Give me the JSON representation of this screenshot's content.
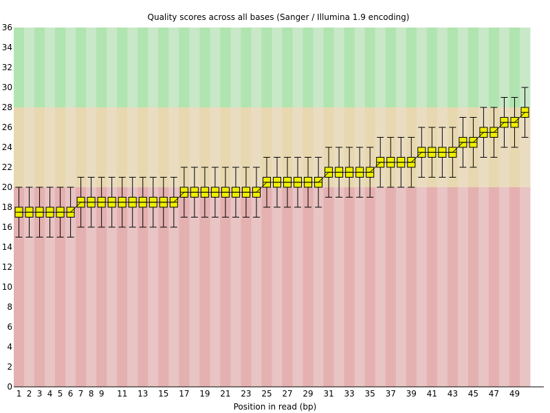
{
  "chart_data": {
    "type": "box",
    "title": "Quality scores across all bases (Sanger / Illumina 1.9 encoding)",
    "xlabel": "Position in read (bp)",
    "ylabel": "",
    "ylim": [
      0,
      36
    ],
    "y_ticks": [
      0,
      2,
      4,
      6,
      8,
      10,
      12,
      14,
      16,
      18,
      20,
      22,
      24,
      26,
      28,
      30,
      32,
      34,
      36
    ],
    "x_tick_labels": [
      "1",
      "2",
      "3",
      "4",
      "5",
      "6",
      "7",
      "8",
      "9",
      "11",
      "13",
      "15",
      "17",
      "19",
      "21",
      "23",
      "25",
      "27",
      "29",
      "31",
      "33",
      "35",
      "37",
      "39",
      "41",
      "43",
      "45",
      "47",
      "49"
    ],
    "x_tick_positions": [
      1,
      2,
      3,
      4,
      5,
      6,
      7,
      8,
      9,
      11,
      13,
      15,
      17,
      19,
      21,
      23,
      25,
      27,
      29,
      31,
      33,
      35,
      37,
      39,
      41,
      43,
      45,
      47,
      49
    ],
    "positions": [
      1,
      2,
      3,
      4,
      5,
      6,
      7,
      8,
      9,
      10,
      11,
      12,
      13,
      14,
      15,
      16,
      17,
      18,
      19,
      20,
      21,
      22,
      23,
      24,
      25,
      26,
      27,
      28,
      29,
      30,
      31,
      32,
      33,
      34,
      35,
      36,
      37,
      38,
      39,
      40,
      41,
      42,
      43,
      44,
      45,
      46,
      47,
      48,
      49,
      50
    ],
    "box_q1": [
      17,
      17,
      17,
      17,
      17,
      17,
      18,
      18,
      18,
      18,
      18,
      18,
      18,
      18,
      18,
      18,
      19,
      19,
      19,
      19,
      19,
      19,
      19,
      19,
      20,
      20,
      20,
      20,
      20,
      20,
      21,
      21,
      21,
      21,
      21,
      22,
      22,
      22,
      22,
      23,
      23,
      23,
      23,
      24,
      24,
      25,
      25,
      26,
      26,
      27
    ],
    "box_q3": [
      18,
      18,
      18,
      18,
      18,
      18,
      19,
      19,
      19,
      19,
      19,
      19,
      19,
      19,
      19,
      19,
      20,
      20,
      20,
      20,
      20,
      20,
      20,
      20,
      21,
      21,
      21,
      21,
      21,
      21,
      22,
      22,
      22,
      22,
      22,
      23,
      23,
      23,
      23,
      24,
      24,
      24,
      24,
      25,
      25,
      26,
      26,
      27,
      27,
      28
    ],
    "whisker_low": [
      15,
      15,
      15,
      15,
      15,
      15,
      16,
      16,
      16,
      16,
      16,
      16,
      16,
      16,
      16,
      16,
      17,
      17,
      17,
      17,
      17,
      17,
      17,
      17,
      18,
      18,
      18,
      18,
      18,
      18,
      19,
      19,
      19,
      19,
      19,
      20,
      20,
      20,
      20,
      21,
      21,
      21,
      21,
      22,
      22,
      23,
      23,
      24,
      24,
      25
    ],
    "whisker_high": [
      20,
      20,
      20,
      20,
      20,
      20,
      21,
      21,
      21,
      21,
      21,
      21,
      21,
      21,
      21,
      21,
      22,
      22,
      22,
      22,
      22,
      22,
      22,
      22,
      23,
      23,
      23,
      23,
      23,
      23,
      24,
      24,
      24,
      24,
      24,
      25,
      25,
      25,
      25,
      26,
      26,
      26,
      26,
      27,
      27,
      28,
      28,
      29,
      29,
      30
    ],
    "mean": [
      17.5,
      17.5,
      17.5,
      17.5,
      17.5,
      17.5,
      18.5,
      18.5,
      18.5,
      18.5,
      18.5,
      18.5,
      18.5,
      18.5,
      18.5,
      18.5,
      19.5,
      19.5,
      19.5,
      19.5,
      19.5,
      19.5,
      19.5,
      19.5,
      20.5,
      20.5,
      20.5,
      20.5,
      20.5,
      20.5,
      21.5,
      21.5,
      21.5,
      21.5,
      21.5,
      22.5,
      22.5,
      22.5,
      22.5,
      23.5,
      23.5,
      23.5,
      23.5,
      24.5,
      24.5,
      25.5,
      25.5,
      26.5,
      26.5,
      27.5
    ],
    "bands": [
      {
        "from": 28,
        "to": 36,
        "colors": [
          "#b0e4b0",
          "#c8e8c8"
        ]
      },
      {
        "from": 20,
        "to": 28,
        "colors": [
          "#e8d8b0",
          "#eadcc0"
        ]
      },
      {
        "from": 0,
        "to": 20,
        "colors": [
          "#e4b0b0",
          "#e8c4c4"
        ]
      }
    ],
    "box_color": "#eeee00",
    "mean_line_color": "#000000",
    "grid": false
  }
}
